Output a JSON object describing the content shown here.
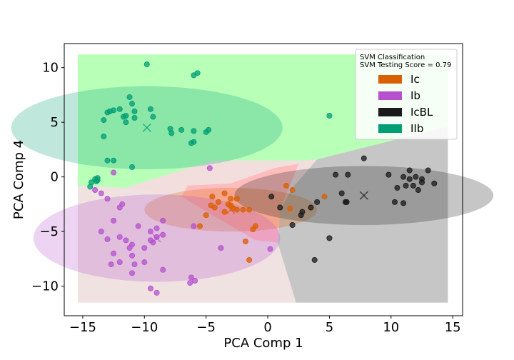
{
  "chart_data": {
    "type": "scatter",
    "xlabel": "PCA Comp 1",
    "ylabel": "PCA Comp 4",
    "xlim": [
      -16.5,
      15.8
    ],
    "ylim": [
      -12.7,
      12.2
    ],
    "xticks": [
      -15,
      -10,
      -5,
      0,
      5,
      10,
      15
    ],
    "yticks": [
      -10,
      -5,
      0,
      5,
      10
    ],
    "legend": {
      "title_lines": [
        "SVM Classification",
        "SVM Testing Score = 0.79"
      ],
      "placement": "top-right"
    },
    "series": [
      {
        "name": "Ic",
        "color": "#d95f02",
        "centroid": [
          -3.0,
          -3.0
        ],
        "ellipse": {
          "width": 14.0,
          "height": 4.0
        },
        "points": [
          [
            -4.5,
            -1.8
          ],
          [
            -3.5,
            -1.5
          ],
          [
            -3.0,
            -2.0
          ],
          [
            -3.2,
            -2.5
          ],
          [
            -2.5,
            -2.0
          ],
          [
            -4.0,
            -2.3
          ],
          [
            -4.3,
            -2.8
          ],
          [
            -4.6,
            -2.6
          ],
          [
            -3.0,
            -2.6
          ],
          [
            -2.8,
            -2.9
          ],
          [
            -2.5,
            -3.0
          ],
          [
            -2.0,
            -3.0
          ],
          [
            -1.5,
            -3.0
          ],
          [
            -3.5,
            -3.2
          ],
          [
            -5.0,
            -3.5
          ],
          [
            -5.5,
            -4.5
          ],
          [
            -1.0,
            -4.5
          ],
          [
            -1.2,
            -4.8
          ],
          [
            -1.8,
            -5.9
          ],
          [
            -1.5,
            -7.6
          ],
          [
            1.5,
            -0.8
          ],
          [
            2.0,
            -1.2
          ],
          [
            1.8,
            -2.9
          ],
          [
            4.6,
            -1.8
          ]
        ]
      },
      {
        "name": "Ib",
        "color": "#b452cd",
        "centroid": [
          -9.0,
          -5.6
        ],
        "ellipse": {
          "width": 20.0,
          "height": 8.0
        },
        "points": [
          [
            -14.0,
            -1.2
          ],
          [
            -13.5,
            -1.5
          ],
          [
            -13.0,
            -2.0
          ],
          [
            -11.8,
            -2.5
          ],
          [
            -12.0,
            -2.8
          ],
          [
            -12.5,
            -4.0
          ],
          [
            -13.5,
            -5.0
          ],
          [
            -13.0,
            -5.7
          ],
          [
            -12.0,
            -5.5
          ],
          [
            -11.5,
            -5.8
          ],
          [
            -11.0,
            -6.2
          ],
          [
            -11.2,
            -6.5
          ],
          [
            -12.5,
            -7.0
          ],
          [
            -11.0,
            -7.2
          ],
          [
            -10.8,
            -8.0
          ],
          [
            -12.0,
            -7.8
          ],
          [
            -12.7,
            -8.0
          ],
          [
            -11.0,
            -8.8
          ],
          [
            -10.0,
            -7.8
          ],
          [
            -8.5,
            -8.5
          ],
          [
            -9.5,
            -10.2
          ],
          [
            -9.0,
            -10.6
          ],
          [
            -10.5,
            -4.5
          ],
          [
            -9.5,
            -5.0
          ],
          [
            -9.0,
            -5.5
          ],
          [
            -9.5,
            -5.8
          ],
          [
            -9.3,
            -6.0
          ],
          [
            -9.0,
            -4.7
          ],
          [
            -8.5,
            -5.3
          ],
          [
            -8.5,
            -4.0
          ],
          [
            -10.0,
            -6.5
          ],
          [
            -6.0,
            -4.5
          ],
          [
            -6.2,
            -9.2
          ],
          [
            -6.3,
            -9.7
          ],
          [
            -5.9,
            -9.5
          ],
          [
            -3.8,
            -6.5
          ],
          [
            -12.5,
            0.4
          ],
          [
            -4.7,
            0.8
          ],
          [
            0.2,
            -6.6
          ]
        ]
      },
      {
        "name": "IcBL",
        "color": "#1a1a1a",
        "centroid": [
          7.8,
          -1.7
        ],
        "ellipse": {
          "width": 21.0,
          "height": 5.4
        },
        "points": [
          [
            7.8,
            1.7
          ],
          [
            5.5,
            0.2
          ],
          [
            6.5,
            0.2
          ],
          [
            9.8,
            0.2
          ],
          [
            11.0,
            0.0
          ],
          [
            11.5,
            0.6
          ],
          [
            11.5,
            -0.2
          ],
          [
            12.5,
            -0.2
          ],
          [
            12.0,
            0.0
          ],
          [
            13.0,
            0.6
          ],
          [
            12.5,
            -0.5
          ],
          [
            13.5,
            -0.6
          ],
          [
            11.2,
            -0.8
          ],
          [
            11.8,
            -0.8
          ],
          [
            10.5,
            -1.0
          ],
          [
            12.2,
            -1.2
          ],
          [
            11.0,
            -2.4
          ],
          [
            10.3,
            -2.3
          ],
          [
            6.0,
            -1.5
          ],
          [
            6.3,
            -2.3
          ],
          [
            6.4,
            -2.3
          ],
          [
            4.0,
            -2.3
          ],
          [
            3.5,
            -2.8
          ],
          [
            2.8,
            -3.2
          ],
          [
            2.7,
            -3.5
          ],
          [
            0.3,
            -1.8
          ],
          [
            1.0,
            -2.8
          ],
          [
            2.0,
            -4.4
          ],
          [
            5.0,
            -5.6
          ],
          [
            3.8,
            -7.6
          ]
        ]
      },
      {
        "name": "IIb",
        "color": "#009e73",
        "centroid": [
          -9.8,
          4.5
        ],
        "ellipse": {
          "width": 22.0,
          "height": 7.6
        },
        "points": [
          [
            -9.8,
            10.3
          ],
          [
            -6.0,
            9.3
          ],
          [
            -5.7,
            9.5
          ],
          [
            -11.2,
            7.3
          ],
          [
            -11.0,
            6.7
          ],
          [
            -13.3,
            5.2
          ],
          [
            -13.0,
            5.9
          ],
          [
            -12.8,
            6.0
          ],
          [
            -12.5,
            6.1
          ],
          [
            -12.0,
            6.2
          ],
          [
            -11.7,
            5.5
          ],
          [
            -11.5,
            5.6
          ],
          [
            -11.5,
            5.0
          ],
          [
            -10.8,
            6.0
          ],
          [
            -10.8,
            5.4
          ],
          [
            -9.5,
            6.2
          ],
          [
            -9.3,
            5.5
          ],
          [
            -7.9,
            4.4
          ],
          [
            -7.0,
            4.3
          ],
          [
            -7.8,
            4.0
          ],
          [
            -6.0,
            4.2
          ],
          [
            -5.0,
            4.1
          ],
          [
            -4.8,
            4.3
          ],
          [
            -6.2,
            3.1
          ],
          [
            -6.0,
            3.2
          ],
          [
            -13.3,
            3.7
          ],
          [
            -13.0,
            1.5
          ],
          [
            -12.5,
            1.5
          ],
          [
            -11.0,
            0.9
          ],
          [
            -14.0,
            -0.2
          ],
          [
            -14.3,
            -0.5
          ],
          [
            -13.9,
            -0.4
          ],
          [
            -13.8,
            -0.3
          ],
          [
            -13.8,
            -0.1
          ],
          [
            -14.4,
            -0.9
          ],
          [
            5.0,
            5.6
          ]
        ]
      }
    ]
  }
}
